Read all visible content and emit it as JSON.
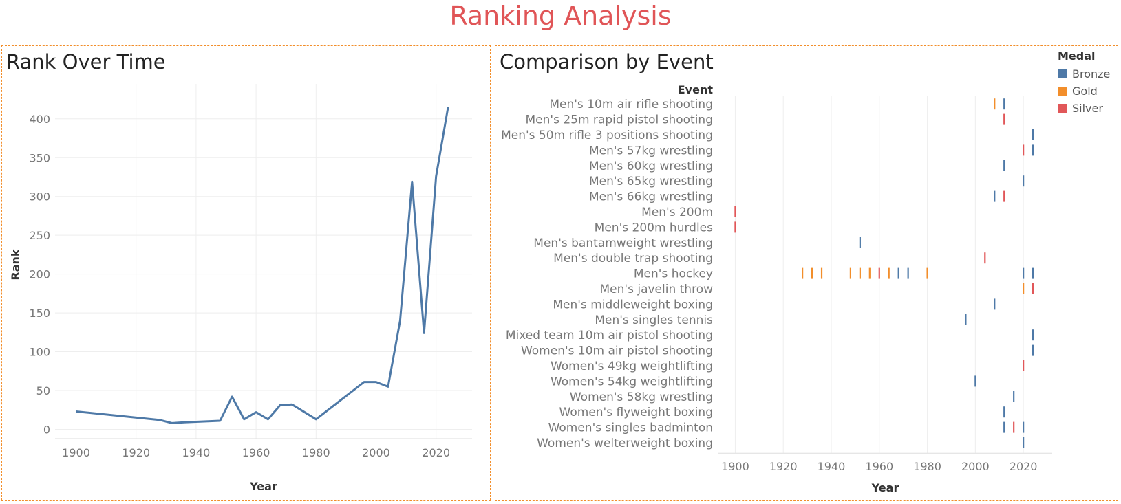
{
  "dashboard": {
    "title": "Ranking Analysis"
  },
  "colors": {
    "title": "#e05557",
    "line": "#4e79a7",
    "Bronze": "#4e79a7",
    "Gold": "#f28e2b",
    "Silver": "#e15759",
    "border": "#f28e2b"
  },
  "chart_data": [
    {
      "type": "line",
      "title": "Rank Over Time",
      "xlabel": "Year",
      "ylabel": "Rank",
      "xlim": [
        1893,
        2032
      ],
      "ylim": [
        -12,
        445
      ],
      "xticks": [
        1900,
        1920,
        1940,
        1960,
        1980,
        2000,
        2020
      ],
      "yticks": [
        0,
        50,
        100,
        150,
        200,
        250,
        300,
        350,
        400
      ],
      "grid": true,
      "series": [
        {
          "x": [
            1900,
            1928,
            1932,
            1936,
            1948,
            1952,
            1956,
            1960,
            1964,
            1968,
            1972,
            1980,
            1996,
            2000,
            2004,
            2008,
            2012,
            2016,
            2020,
            2024
          ],
          "y": [
            23,
            12,
            8,
            9,
            11,
            42,
            13,
            22,
            13,
            31,
            32,
            13,
            61,
            61,
            55,
            140,
            319,
            124,
            326,
            415
          ]
        }
      ]
    },
    {
      "type": "strip",
      "title": "Comparison by Event",
      "xlabel": "Year",
      "ylabel": "Event",
      "xlim": [
        1893,
        2032
      ],
      "xticks": [
        1900,
        1920,
        1940,
        1960,
        1980,
        2000,
        2020
      ],
      "grid": true,
      "legend": {
        "title": "Medal",
        "placement": "top-right",
        "entries": [
          "Bronze",
          "Gold",
          "Silver"
        ]
      },
      "events": [
        "Men's 10m air rifle shooting",
        "Men's 25m rapid pistol shooting",
        "Men's 50m rifle 3 positions shooting",
        "Men's 57kg wrestling",
        "Men's 60kg wrestling",
        "Men's 65kg wrestling",
        "Men's 66kg wrestling",
        "Men's 200m",
        "Men's 200m hurdles",
        "Men's bantamweight wrestling",
        "Men's double trap shooting",
        "Men's hockey",
        "Men's javelin throw",
        "Men's middleweight boxing",
        "Men's singles tennis",
        "Mixed team 10m air pistol shooting",
        "Women's 10m air pistol shooting",
        "Women's 49kg weightlifting",
        "Women's 54kg weightlifting",
        "Women's 58kg wrestling",
        "Women's flyweight boxing",
        "Women's singles badminton",
        "Women's welterweight boxing"
      ],
      "marks": [
        {
          "event": 0,
          "year": 2008,
          "medal": "Gold"
        },
        {
          "event": 0,
          "year": 2012,
          "medal": "Bronze"
        },
        {
          "event": 1,
          "year": 2012,
          "medal": "Silver"
        },
        {
          "event": 2,
          "year": 2024,
          "medal": "Bronze"
        },
        {
          "event": 3,
          "year": 2020,
          "medal": "Silver"
        },
        {
          "event": 3,
          "year": 2024,
          "medal": "Bronze"
        },
        {
          "event": 4,
          "year": 2012,
          "medal": "Bronze"
        },
        {
          "event": 5,
          "year": 2020,
          "medal": "Bronze"
        },
        {
          "event": 6,
          "year": 2008,
          "medal": "Bronze"
        },
        {
          "event": 6,
          "year": 2012,
          "medal": "Silver"
        },
        {
          "event": 7,
          "year": 1900,
          "medal": "Silver"
        },
        {
          "event": 8,
          "year": 1900,
          "medal": "Silver"
        },
        {
          "event": 9,
          "year": 1952,
          "medal": "Bronze"
        },
        {
          "event": 10,
          "year": 2004,
          "medal": "Silver"
        },
        {
          "event": 11,
          "year": 1928,
          "medal": "Gold"
        },
        {
          "event": 11,
          "year": 1932,
          "medal": "Gold"
        },
        {
          "event": 11,
          "year": 1936,
          "medal": "Gold"
        },
        {
          "event": 11,
          "year": 1948,
          "medal": "Gold"
        },
        {
          "event": 11,
          "year": 1952,
          "medal": "Gold"
        },
        {
          "event": 11,
          "year": 1956,
          "medal": "Gold"
        },
        {
          "event": 11,
          "year": 1960,
          "medal": "Silver"
        },
        {
          "event": 11,
          "year": 1964,
          "medal": "Gold"
        },
        {
          "event": 11,
          "year": 1968,
          "medal": "Bronze"
        },
        {
          "event": 11,
          "year": 1972,
          "medal": "Bronze"
        },
        {
          "event": 11,
          "year": 1980,
          "medal": "Gold"
        },
        {
          "event": 11,
          "year": 2020,
          "medal": "Bronze"
        },
        {
          "event": 11,
          "year": 2024,
          "medal": "Bronze"
        },
        {
          "event": 12,
          "year": 2020,
          "medal": "Gold"
        },
        {
          "event": 12,
          "year": 2024,
          "medal": "Silver"
        },
        {
          "event": 13,
          "year": 2008,
          "medal": "Bronze"
        },
        {
          "event": 14,
          "year": 1996,
          "medal": "Bronze"
        },
        {
          "event": 15,
          "year": 2024,
          "medal": "Bronze"
        },
        {
          "event": 16,
          "year": 2024,
          "medal": "Bronze"
        },
        {
          "event": 17,
          "year": 2020,
          "medal": "Silver"
        },
        {
          "event": 18,
          "year": 2000,
          "medal": "Bronze"
        },
        {
          "event": 19,
          "year": 2016,
          "medal": "Bronze"
        },
        {
          "event": 20,
          "year": 2012,
          "medal": "Bronze"
        },
        {
          "event": 21,
          "year": 2012,
          "medal": "Bronze"
        },
        {
          "event": 21,
          "year": 2016,
          "medal": "Silver"
        },
        {
          "event": 21,
          "year": 2020,
          "medal": "Bronze"
        },
        {
          "event": 22,
          "year": 2020,
          "medal": "Bronze"
        }
      ]
    }
  ]
}
